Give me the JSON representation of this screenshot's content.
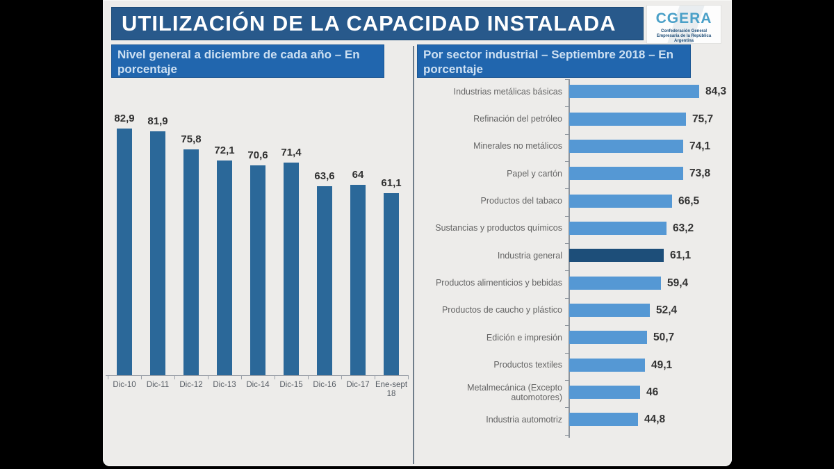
{
  "page": {
    "title": "UTILIZACIÓN DE LA CAPACIDAD INSTALADA"
  },
  "logo": {
    "name": "CGERA",
    "subtext": "Confederación General Empresaria de la República Argentina"
  },
  "colors": {
    "title_bar": "#28598b",
    "subtitle_bar": "#2166ae",
    "left_bar": "#2b6899",
    "right_bar": "#5598d4",
    "highlight_bar": "#1d4e79",
    "value_text": "#303030",
    "label_text": "#646464"
  },
  "chart_data": [
    {
      "type": "bar",
      "title": "Nivel general a diciembre de cada año – En porcentaje",
      "categories": [
        "Dic-10",
        "Dic-11",
        "Dic-12",
        "Dic-13",
        "Dic-14",
        "Dic-15",
        "Dic-16",
        "Dic-17",
        "Ene-sept 18"
      ],
      "values": [
        82.9,
        81.9,
        75.8,
        72.1,
        70.6,
        71.4,
        63.6,
        64,
        61.1
      ],
      "value_labels": [
        "82,9",
        "81,9",
        "75,8",
        "72,1",
        "70,6",
        "71,4",
        "63,6",
        "64",
        "61,1"
      ],
      "xlabel": "",
      "ylabel": "",
      "ylim": [
        0,
        90
      ],
      "grid": false,
      "legend": false,
      "bar_color": "#2b6899"
    },
    {
      "type": "bar-horizontal",
      "title": "Por sector industrial – Septiembre 2018 – En porcentaje",
      "categories": [
        "Industrias metálicas básicas",
        "Refinación del petróleo",
        "Minerales no metálicos",
        "Papel y cartón",
        "Productos del tabaco",
        "Sustancias y productos químicos",
        "Industria general",
        "Productos alimenticios y bebidas",
        "Productos de caucho y plástico",
        "Edición e impresión",
        "Productos textiles",
        "Metalmecánica (Excepto automotores)",
        "Industria automotriz"
      ],
      "values": [
        84.3,
        75.7,
        74.1,
        73.8,
        66.5,
        63.2,
        61.1,
        59.4,
        52.4,
        50.7,
        49.1,
        46,
        44.8
      ],
      "value_labels": [
        "84,3",
        "75,7",
        "74,1",
        "73,8",
        "66,5",
        "63,2",
        "61,1",
        "59,4",
        "52,4",
        "50,7",
        "49,1",
        "46",
        "44,8"
      ],
      "highlight_category": "Industria general",
      "highlight_index": 6,
      "xlim": [
        0,
        90
      ],
      "grid": false,
      "legend": false,
      "bar_color": "#5598d4",
      "highlight_color": "#1d4e79"
    }
  ]
}
